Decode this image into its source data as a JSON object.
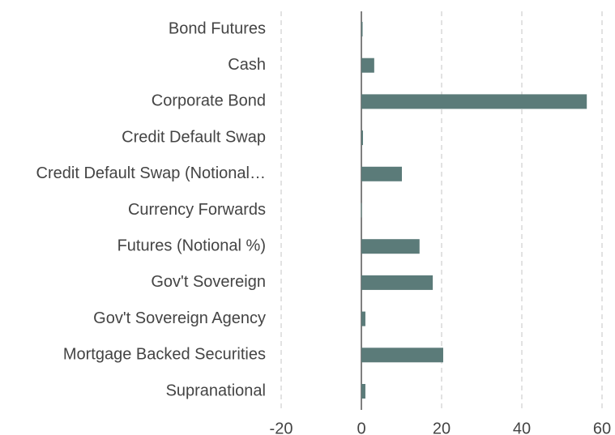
{
  "chart_data": {
    "type": "hbar",
    "categories": [
      "Bond Futures",
      "Cash",
      "Corporate Bond",
      "Credit Default Swap",
      "Credit Default Swap (Notional…",
      "Currency Forwards",
      "Futures (Notional %)",
      "Gov't Sovereign",
      "Gov't Sovereign Agency",
      "Mortgage Backed Securities",
      "Supranational"
    ],
    "values": [
      0.3,
      3.2,
      56.2,
      0.4,
      10.1,
      -0.1,
      14.5,
      17.8,
      1.0,
      20.4,
      1.0
    ],
    "color": "#5b7b79",
    "xlim": [
      -20,
      60
    ],
    "xticks": [
      -20,
      0,
      20,
      40,
      60
    ],
    "grid": true
  }
}
